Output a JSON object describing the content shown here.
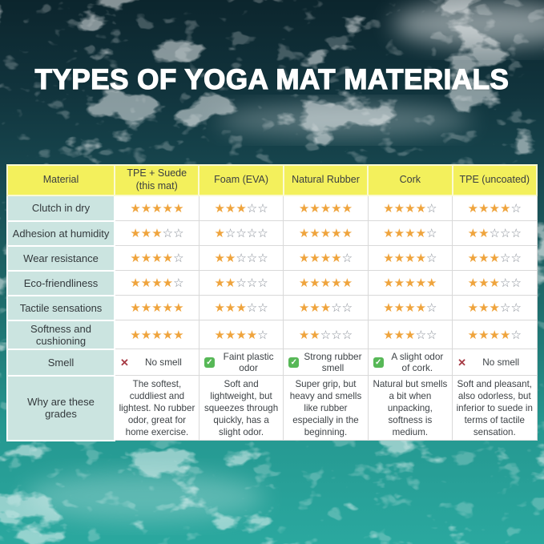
{
  "colors": {
    "header_bg": "#f3f05c",
    "label_bg": "#cbe4e0",
    "cell_bg": "#ffffff",
    "star_filled": "#efa43d",
    "star_empty": "#878d96",
    "check_green": "#57b857",
    "cross_red": "#a63a44",
    "text_dark": "#3e4347",
    "ocean_dark": "#0c252d",
    "ocean_bright": "#2aa89f"
  },
  "chart_data": {
    "type": "table",
    "title": "TYPES OF YOGA MAT MATERIALS",
    "columns": [
      "Material",
      "TPE + Suede (this mat)",
      "Foam (EVA)",
      "Natural Rubber",
      "Cork",
      "TPE (uncoated)"
    ],
    "max_stars": 5,
    "rating_unit": "stars out of 5",
    "rating_rows": [
      {
        "label": "Clutch in dry",
        "ratings": [
          5,
          3,
          5,
          4,
          4
        ]
      },
      {
        "label": "Adhesion at humidity",
        "ratings": [
          3,
          1,
          5,
          4,
          2
        ]
      },
      {
        "label": "Wear resistance",
        "ratings": [
          4,
          2,
          4,
          4,
          3
        ]
      },
      {
        "label": "Eco-friendliness",
        "ratings": [
          4,
          2,
          5,
          5,
          3
        ]
      },
      {
        "label": "Tactile sensations",
        "ratings": [
          5,
          3,
          3,
          4,
          3
        ]
      },
      {
        "label": "Softness and cushioning",
        "ratings": [
          5,
          4,
          2,
          3,
          4
        ]
      }
    ],
    "smell_row": {
      "label": "Smell",
      "cells": [
        {
          "icon": "cross",
          "text": "No smell"
        },
        {
          "icon": "check",
          "text": "Faint plastic odor"
        },
        {
          "icon": "check",
          "text": "Strong rubber smell"
        },
        {
          "icon": "check",
          "text": "A slight odor of cork."
        },
        {
          "icon": "cross",
          "text": "No smell"
        }
      ]
    },
    "grades_row": {
      "label": "Why are these grades",
      "cells": [
        "The softest, cuddliest and lightest. No rubber odor, great for home exercise.",
        "Soft and lightweight, but squeezes through quickly, has a slight odor.",
        "Super grip, but heavy and smells like rubber especially in the beginning.",
        "Natural but smells a bit when unpacking, softness is medium.",
        "Soft and pleasant, also odorless, but inferior to suede in terms of tactile sensation."
      ]
    }
  }
}
